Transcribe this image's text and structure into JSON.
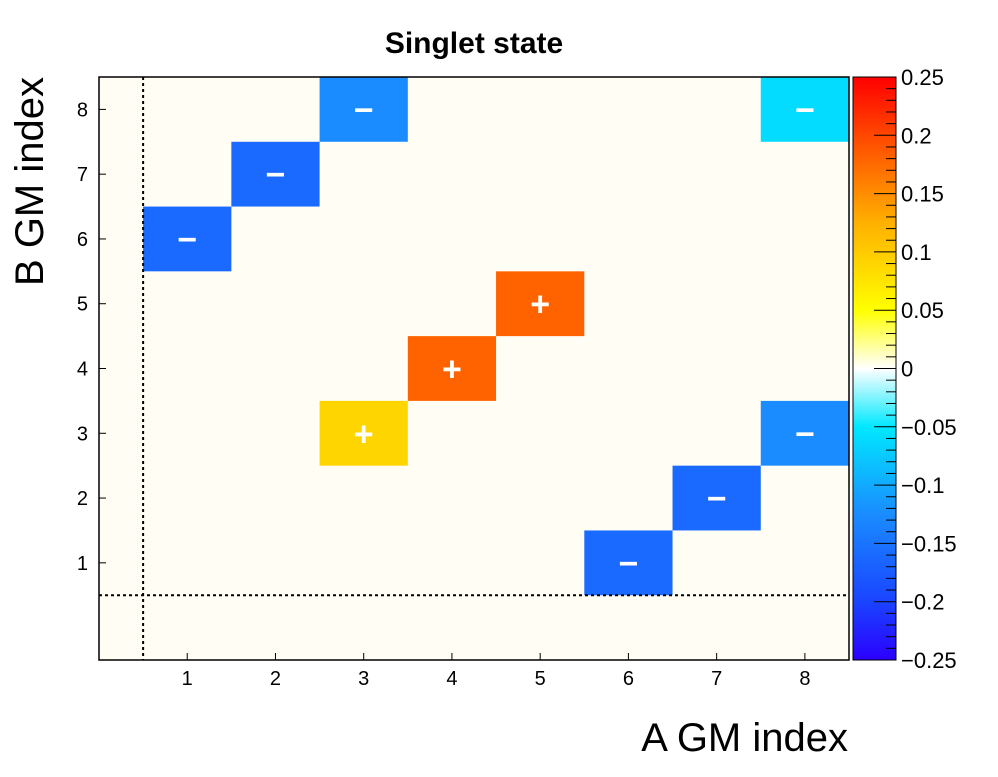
{
  "chart_data": {
    "type": "heatmap",
    "title": "Singlet state",
    "xlabel": "A GM index",
    "ylabel": "B GM index",
    "x_ticks": [
      "1",
      "2",
      "3",
      "4",
      "5",
      "6",
      "7",
      "8"
    ],
    "y_ticks": [
      "1",
      "2",
      "3",
      "4",
      "5",
      "6",
      "7",
      "8"
    ],
    "x_range": [
      0,
      8.5
    ],
    "y_range": [
      -0.5,
      8.5
    ],
    "z_range": [
      -0.25,
      0.25
    ],
    "colorbar_labels": [
      "0.25",
      "0.2",
      "0.15",
      "0.1",
      "0.05",
      "0",
      "−0.05",
      "−0.1",
      "−0.15",
      "−0.2",
      "−0.25"
    ],
    "colorbar_values": [
      0.25,
      0.2,
      0.15,
      0.1,
      0.05,
      0,
      -0.05,
      -0.1,
      -0.15,
      -0.2,
      -0.25
    ],
    "dotted_lines": {
      "x": 0.5,
      "y": 0.5
    },
    "background_color": "#fffdf4",
    "cells": [
      {
        "a": 3,
        "b": 8,
        "value": -0.125,
        "sign": "−"
      },
      {
        "a": 8,
        "b": 8,
        "value": -0.06,
        "sign": "−"
      },
      {
        "a": 2,
        "b": 7,
        "value": -0.16,
        "sign": "−"
      },
      {
        "a": 1,
        "b": 6,
        "value": -0.16,
        "sign": "−"
      },
      {
        "a": 5,
        "b": 5,
        "value": 0.18,
        "sign": "+"
      },
      {
        "a": 4,
        "b": 4,
        "value": 0.18,
        "sign": "+"
      },
      {
        "a": 3,
        "b": 3,
        "value": 0.09,
        "sign": "+"
      },
      {
        "a": 8,
        "b": 3,
        "value": -0.125,
        "sign": "−"
      },
      {
        "a": 7,
        "b": 2,
        "value": -0.16,
        "sign": "−"
      },
      {
        "a": 6,
        "b": 1,
        "value": -0.16,
        "sign": "−"
      }
    ]
  }
}
